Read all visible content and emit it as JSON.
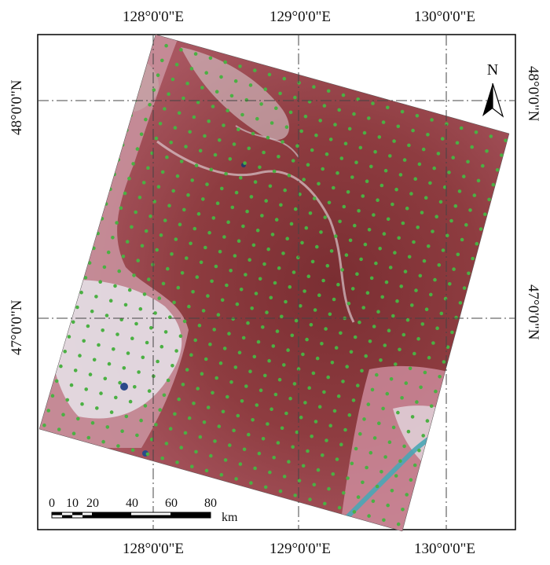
{
  "map": {
    "top_lon_labels": [
      "128°0'0\"E",
      "129°0'0\"E",
      "130°0'0\"E"
    ],
    "bottom_lon_labels": [
      "128°0'0\"E",
      "129°0'0\"E",
      "130°0'0\"E"
    ],
    "left_lat_labels": [
      "48°0'0\"N",
      "47°0'0\"N"
    ],
    "right_lat_labels": [
      "48°0'0\"N",
      "47°0'0\"N"
    ],
    "north_label": "N",
    "scale": {
      "ticks": [
        "0",
        "10",
        "20",
        "40",
        "60",
        "80"
      ],
      "unit": "km"
    },
    "colors": {
      "frame": "#000000",
      "graticule": "#444444",
      "vegetation": "#8a3a3c",
      "vegetation_dark": "#6f2a2e",
      "cropland": "#c98a9a",
      "bare_soil": "#ece8f0",
      "water": "#4aa8b8",
      "sample_points": "#4bb043"
    }
  }
}
